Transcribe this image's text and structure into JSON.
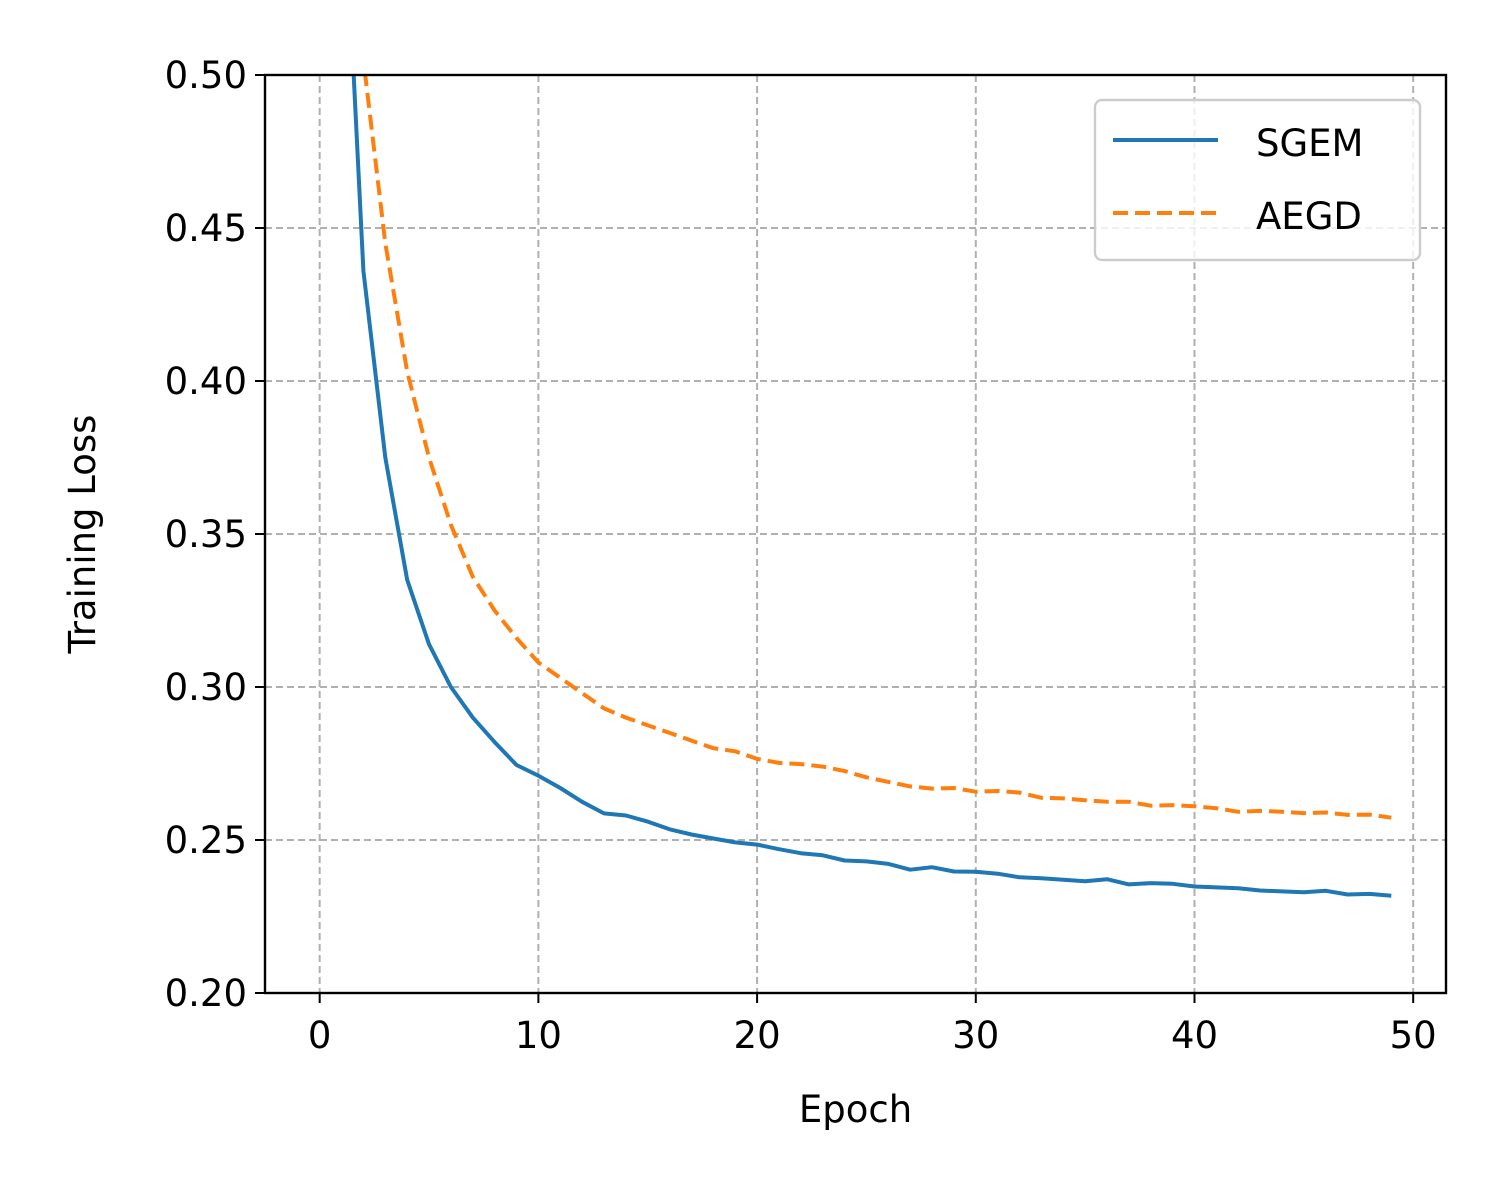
{
  "chart_data": {
    "type": "line",
    "title": "",
    "xlabel": "Epoch",
    "ylabel": "Training Loss",
    "xlim": [
      -2.5,
      51.5
    ],
    "ylim": [
      0.2,
      0.5
    ],
    "xticks": [
      0,
      10,
      20,
      30,
      40,
      50
    ],
    "xtick_labels": [
      "0",
      "10",
      "20",
      "30",
      "40",
      "50"
    ],
    "yticks": [
      0.2,
      0.25,
      0.3,
      0.35,
      0.4,
      0.45,
      0.5
    ],
    "ytick_labels": [
      "0.20",
      "0.25",
      "0.30",
      "0.35",
      "0.40",
      "0.45",
      "0.50"
    ],
    "grid": true,
    "legend_position": "top-right",
    "series": [
      {
        "name": "SGEM",
        "color": "#1f77b4",
        "style": "solid",
        "x": [
          1,
          2,
          3,
          4,
          5,
          6,
          7,
          8,
          9,
          10,
          11,
          12,
          13,
          14,
          15,
          16,
          17,
          18,
          19,
          20,
          21,
          22,
          23,
          24,
          25,
          26,
          27,
          28,
          29,
          30,
          31,
          32,
          33,
          34,
          35,
          36,
          37,
          38,
          39,
          40,
          41,
          42,
          43,
          44,
          45,
          46,
          47,
          48,
          49
        ],
        "values": [
          0.58,
          0.436,
          0.375,
          0.335,
          0.314,
          0.3,
          0.29,
          0.282,
          0.2745,
          0.271,
          0.267,
          0.2625,
          0.2587,
          0.258,
          0.256,
          0.2535,
          0.2518,
          0.2505,
          0.2492,
          0.2485,
          0.247,
          0.2457,
          0.245,
          0.2433,
          0.243,
          0.2422,
          0.2403,
          0.2411,
          0.2397,
          0.2396,
          0.239,
          0.2378,
          0.2375,
          0.237,
          0.2365,
          0.2372,
          0.2355,
          0.2359,
          0.2357,
          0.2348,
          0.2345,
          0.2342,
          0.2335,
          0.2332,
          0.2329,
          0.2334,
          0.2322,
          0.2324,
          0.2318
        ]
      },
      {
        "name": "AEGD",
        "color": "#ff7f0e",
        "style": "dashed",
        "x": [
          1,
          2,
          3,
          4,
          5,
          6,
          7,
          8,
          9,
          10,
          11,
          12,
          13,
          14,
          15,
          16,
          17,
          18,
          19,
          20,
          21,
          22,
          23,
          24,
          25,
          26,
          27,
          28,
          29,
          30,
          31,
          32,
          33,
          34,
          35,
          36,
          37,
          38,
          39,
          40,
          41,
          42,
          43,
          44,
          45,
          46,
          47,
          48,
          49
        ],
        "values": [
          0.58,
          0.505,
          0.445,
          0.403,
          0.375,
          0.353,
          0.336,
          0.325,
          0.316,
          0.308,
          0.303,
          0.298,
          0.293,
          0.29,
          0.2875,
          0.285,
          0.2825,
          0.28,
          0.279,
          0.2765,
          0.2752,
          0.2748,
          0.274,
          0.2725,
          0.2705,
          0.269,
          0.2675,
          0.2668,
          0.267,
          0.2658,
          0.266,
          0.2655,
          0.2638,
          0.2636,
          0.263,
          0.2625,
          0.2625,
          0.2612,
          0.2614,
          0.261,
          0.2604,
          0.2592,
          0.2595,
          0.2592,
          0.2588,
          0.259,
          0.2582,
          0.2583,
          0.2573
        ]
      }
    ]
  }
}
